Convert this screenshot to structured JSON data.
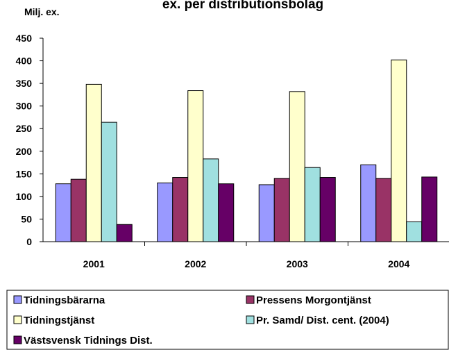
{
  "chart_data": {
    "type": "bar",
    "title": "ex. per distributionsbolag",
    "y_label": "Milj. ex.",
    "categories": [
      "2001",
      "2002",
      "2003",
      "2004"
    ],
    "series": [
      {
        "name": "Tidningsbärarna",
        "color": "#9999ff",
        "values": [
          128,
          130,
          126,
          170
        ]
      },
      {
        "name": "Pressens Morgontjänst",
        "color": "#993366",
        "values": [
          138,
          142,
          140,
          140
        ]
      },
      {
        "name": "Tidningstjänst",
        "color": "#ffffcc",
        "values": [
          348,
          334,
          332,
          402
        ]
      },
      {
        "name": "Pr. Samd/ Dist. cent. (2004)",
        "color": "#a0e0e0",
        "values": [
          264,
          183,
          164,
          44
        ]
      },
      {
        "name": "Västsvensk Tidnings Dist.",
        "color": "#660066",
        "values": [
          38,
          128,
          142,
          143
        ]
      }
    ],
    "ylim": [
      0,
      450
    ],
    "yticks": [
      0,
      50,
      100,
      150,
      200,
      250,
      300,
      350,
      400,
      450
    ],
    "legend": "bottom"
  }
}
